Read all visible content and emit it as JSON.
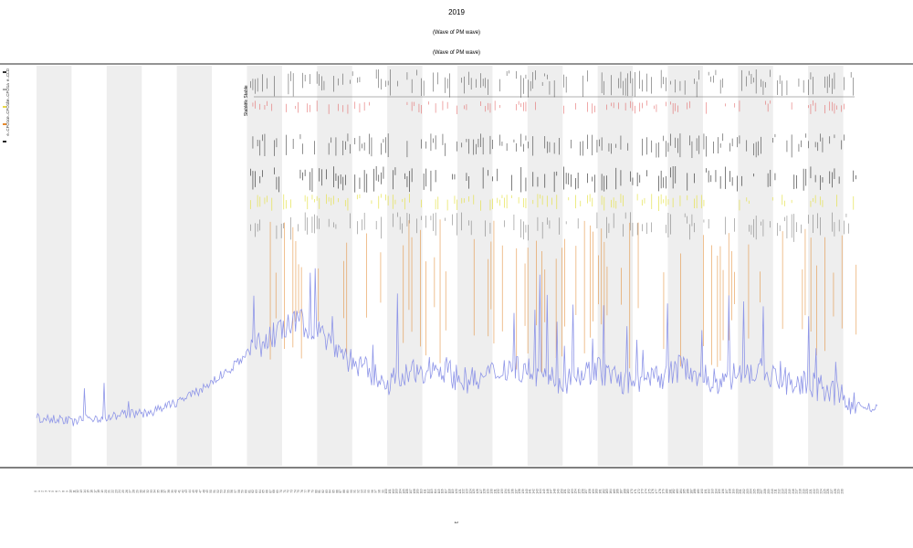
{
  "title_lines": [
    "2019",
    "(Wave of PM wave)",
    "(Wave of PM wave)"
  ],
  "legend": [
    {
      "label": "e..CLD",
      "color": "#333333"
    },
    {
      "label": "e..CFO1a",
      "color": "#aaaaaa"
    },
    {
      "label": "e..CFO1b",
      "color": "#e8d84a"
    },
    {
      "label": "e..CFO1c",
      "color": "#e58a2e"
    },
    {
      "label": "",
      "color": "#222222"
    }
  ],
  "row_labels": [
    "Ye Stable",
    "Stable"
  ],
  "xlabel": "t",
  "ylabel": "",
  "colors": {
    "signal": "#8f96e8",
    "band_shade": "#eeeeee",
    "axis": "#555555",
    "events_black": "#222222",
    "events_yellow": "#e5e24a",
    "events_orange": "#e2882c",
    "events_red": "#e05555"
  },
  "chart_data": {
    "type": "line",
    "title": "2019",
    "subtitle": [
      "(Wave of PM wave)",
      "(Wave of PM wave)"
    ],
    "xlabel": "t",
    "ylabel": "",
    "x_range": [
      0,
      240
    ],
    "ylim": [
      0,
      100
    ],
    "grid": false,
    "shaded_bands_x": [
      [
        0,
        10
      ],
      [
        20,
        30
      ],
      [
        40,
        50
      ],
      [
        60,
        70
      ],
      [
        80,
        90
      ],
      [
        100,
        110
      ],
      [
        120,
        130
      ],
      [
        140,
        150
      ],
      [
        160,
        170
      ],
      [
        180,
        190
      ],
      [
        200,
        210
      ],
      [
        220,
        230
      ]
    ],
    "series": [
      {
        "name": "",
        "x": [
          0,
          5,
          10,
          15,
          20,
          25,
          30,
          35,
          40,
          45,
          50,
          55,
          60,
          65,
          70,
          75,
          80,
          85,
          90,
          95,
          100,
          105,
          110,
          115,
          120,
          125,
          130,
          135,
          140,
          145,
          150,
          155,
          160,
          165,
          170,
          175,
          180,
          185,
          190,
          195,
          200,
          205,
          210,
          215,
          220,
          225,
          230,
          235,
          240
        ],
        "values": [
          12,
          12,
          11,
          12,
          12,
          13,
          13,
          14,
          16,
          18,
          21,
          24,
          28,
          31,
          34,
          36,
          34,
          30,
          26,
          23,
          21,
          22,
          24,
          25,
          22,
          21,
          23,
          25,
          24,
          22,
          21,
          23,
          24,
          22,
          20,
          21,
          23,
          25,
          22,
          21,
          23,
          24,
          22,
          21,
          20,
          19,
          17,
          15,
          14
        ]
      }
    ],
    "event_start_x": 61,
    "event_end_x": 234
  }
}
